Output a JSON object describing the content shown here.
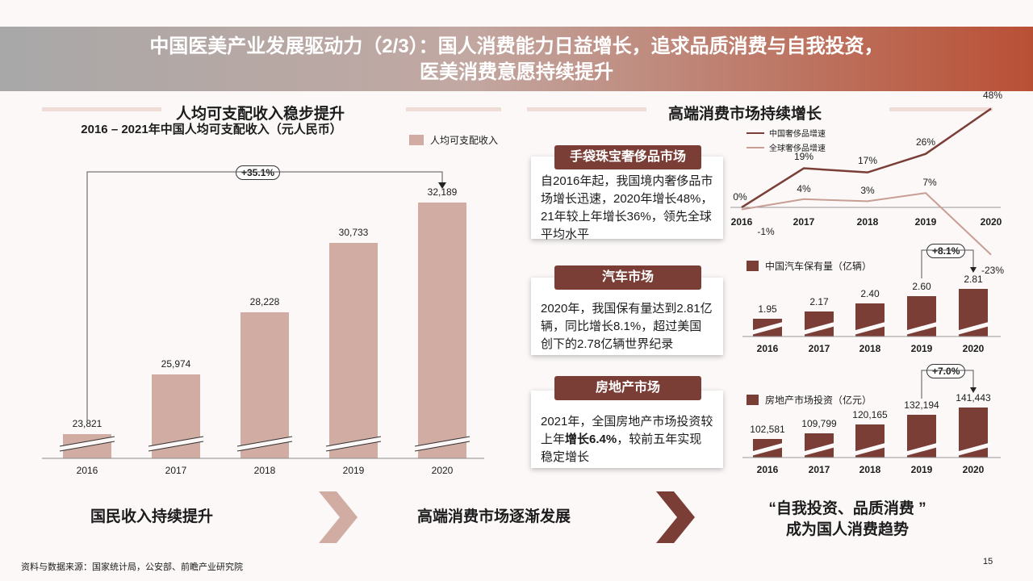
{
  "header": {
    "title_line1": "中国医美产业发展驱动力（2/3）：国人消费能力日益增长，追求品质消费与自我投资，",
    "title_line2": "医美消费意愿持续提升"
  },
  "left": {
    "section_title": "人均可支配收入稳步提升",
    "chart_title": "2016 – 2021年中国人均可支配收入（元人民币）",
    "legend": "人均可支配收入",
    "growth_badge": "+35.1%"
  },
  "right": {
    "section_title": "高端消费市场持续增长",
    "luxury": {
      "pill": "手袋珠宝奢侈品市场",
      "text": "自2016年起，我国境内奢侈品市场增长迅速，2020年增长48%，21年较上年增长36%，领先全球平均水平",
      "legend_china": "中国奢侈品增速",
      "legend_global": "全球奢侈品增速"
    },
    "auto": {
      "pill": "汽车市场",
      "text": "2020年，我国保有量达到2.81亿辆，同比增长8.1%，超过美国创下的2.78亿辆世界纪录",
      "legend": "中国汽车保有量（亿辆）",
      "growth_badge": "+8.1%"
    },
    "realestate": {
      "pill": "房地产市场",
      "text_prefix": "2021年，全国房地产市场投资较上年",
      "text_bold": "增长6.4%",
      "text_suffix": "，较前五年实现稳定增长",
      "legend": "房地产市场投资（亿元）",
      "growth_badge": "+7.0%"
    }
  },
  "bottom": {
    "item1": "国民收入持续提升",
    "item2": "高端消费市场逐渐发展",
    "item3_line1": "“自我投资、品质消费 ”",
    "item3_line2": "成为国人消费趋势"
  },
  "footer": {
    "source": "资料与数据来源：国家统计局，公安部、前瞻产业研究院",
    "page": "15"
  },
  "colors": {
    "main_bar": "#d1aca3",
    "dark": "#7a3e37",
    "line_global": "#c89d93"
  },
  "chart_data": [
    {
      "type": "bar",
      "title": "2016 – 2021年中国人均可支配收入（元人民币）",
      "categories": [
        "2016",
        "2017",
        "2018",
        "2019",
        "2020"
      ],
      "series": [
        {
          "name": "人均可支配收入",
          "values": [
            23821,
            25974,
            28228,
            30733,
            32189
          ]
        }
      ],
      "value_labels": [
        "23,821",
        "25,974",
        "28,228",
        "30,733",
        "32,189"
      ]
    },
    {
      "type": "line",
      "categories": [
        "2016",
        "2017",
        "2018",
        "2019",
        "2020"
      ],
      "series": [
        {
          "name": "中国奢侈品增速",
          "values": [
            0,
            19,
            17,
            26,
            48
          ],
          "labels": [
            "0%",
            "19%",
            "17%",
            "26%",
            "48%"
          ]
        },
        {
          "name": "全球奢侈品增速",
          "values": [
            -1,
            4,
            3,
            7,
            -23
          ],
          "labels": [
            "-1%",
            "4%",
            "3%",
            "7%",
            "-23%"
          ]
        }
      ]
    },
    {
      "type": "bar",
      "categories": [
        "2016",
        "2017",
        "2018",
        "2019",
        "2020"
      ],
      "series": [
        {
          "name": "中国汽车保有量（亿辆）",
          "values": [
            1.95,
            2.17,
            2.4,
            2.6,
            2.81
          ],
          "labels": [
            "1.95",
            "2.17",
            "2.40",
            "2.60",
            "2.81"
          ]
        }
      ]
    },
    {
      "type": "bar",
      "categories": [
        "2016",
        "2017",
        "2018",
        "2019",
        "2020"
      ],
      "series": [
        {
          "name": "房地产市场投资（亿元）",
          "values": [
            102581,
            109799,
            120165,
            132194,
            141443
          ],
          "labels": [
            "102,581",
            "109,799",
            "120,165",
            "132,194",
            "141,443"
          ]
        }
      ]
    }
  ]
}
